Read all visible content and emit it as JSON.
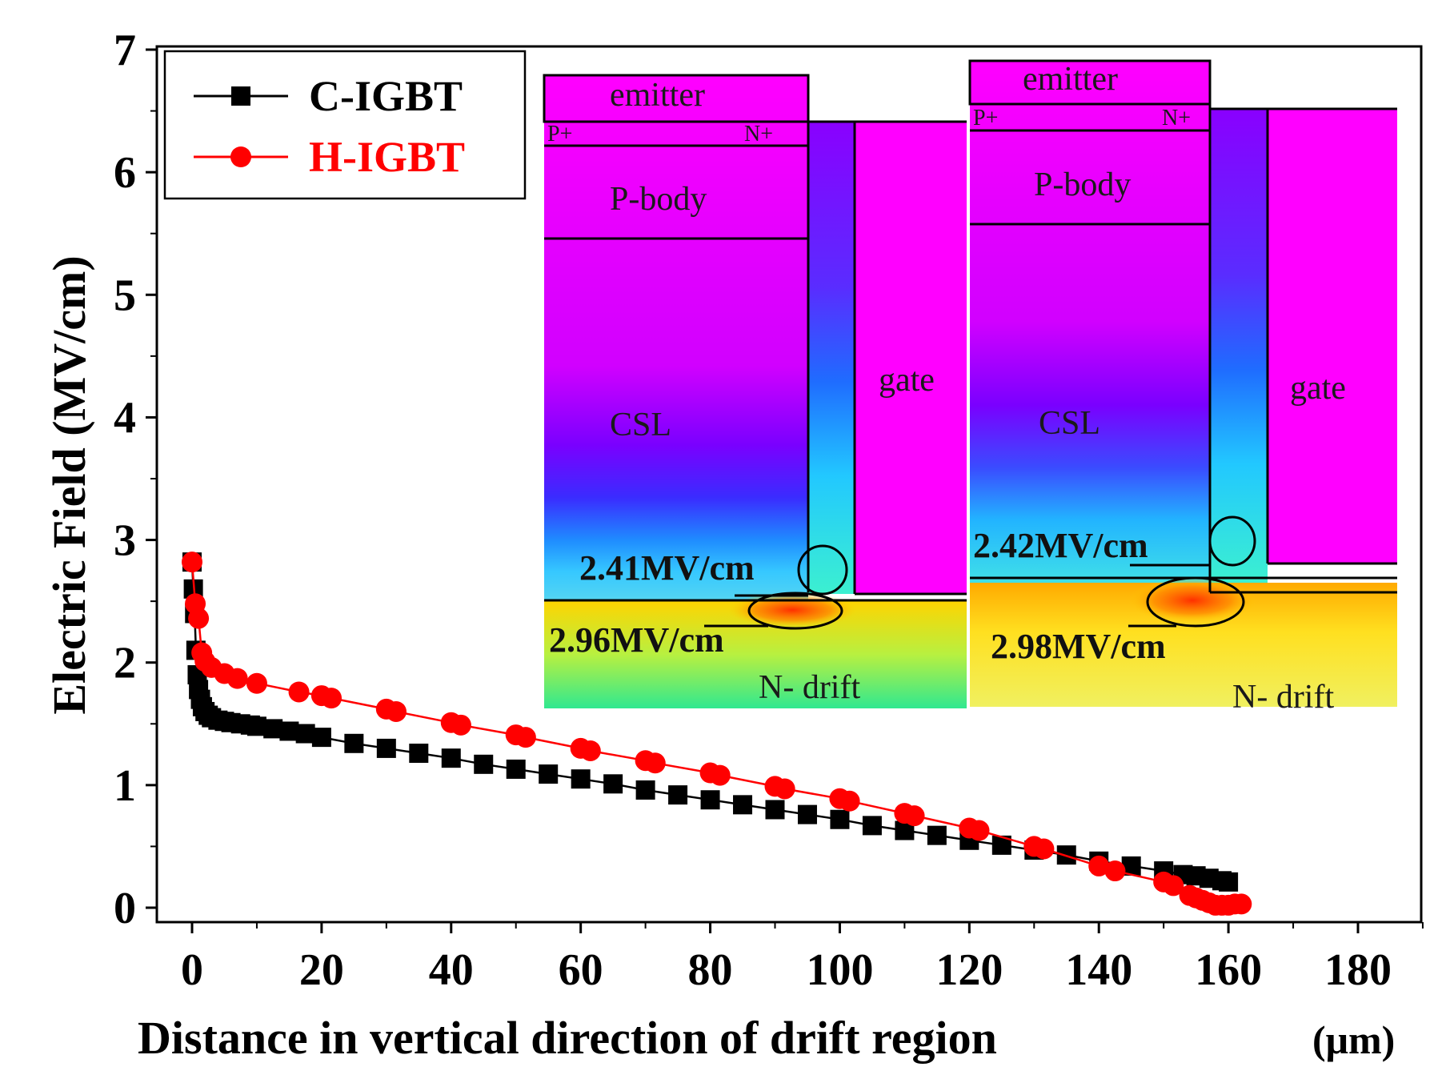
{
  "chart_data": {
    "type": "scatter",
    "xlabel": "Distance in vertical direction of drift region",
    "xlabel_unit": "(μm)",
    "ylabel": "Electric Field (MV/cm)",
    "xlim": [
      -5,
      190
    ],
    "ylim": [
      -0.2,
      7
    ],
    "x_ticks": [
      "0",
      "20",
      "40",
      "60",
      "80",
      "100",
      "120",
      "140",
      "160",
      "180"
    ],
    "y_ticks": [
      "0",
      "1",
      "2",
      "3",
      "4",
      "5",
      "6",
      "7"
    ],
    "legend_position": "top-left",
    "series": [
      {
        "name": "C-IGBT",
        "color": "#000000",
        "marker": "square",
        "x": [
          0,
          0.2,
          0.4,
          0.6,
          0.8,
          1,
          1.3,
          1.6,
          2,
          2.5,
          3,
          4,
          5,
          6,
          7.5,
          9,
          10,
          12.5,
          15,
          17.5,
          20,
          25,
          30,
          35,
          40,
          45,
          50,
          55,
          60,
          65,
          70,
          75,
          80,
          85,
          90,
          95,
          100,
          105,
          110,
          115,
          120,
          125,
          130,
          135,
          140,
          145,
          150,
          153,
          155,
          157,
          159,
          160
        ],
        "y": [
          2.82,
          2.6,
          2.4,
          2.1,
          1.9,
          1.78,
          1.7,
          1.64,
          1.6,
          1.57,
          1.55,
          1.53,
          1.52,
          1.51,
          1.5,
          1.49,
          1.48,
          1.46,
          1.44,
          1.42,
          1.39,
          1.34,
          1.3,
          1.26,
          1.22,
          1.17,
          1.13,
          1.09,
          1.05,
          1.01,
          0.96,
          0.92,
          0.88,
          0.84,
          0.8,
          0.76,
          0.72,
          0.67,
          0.63,
          0.59,
          0.55,
          0.51,
          0.47,
          0.43,
          0.38,
          0.34,
          0.3,
          0.27,
          0.26,
          0.24,
          0.22,
          0.21
        ]
      },
      {
        "name": "H-IGBT",
        "color": "#ff0000",
        "marker": "circle",
        "x": [
          0,
          0.5,
          1,
          1.5,
          2,
          3,
          5,
          7,
          10,
          16.5,
          20,
          21.5,
          30,
          31.5,
          40,
          41.5,
          50,
          51.5,
          60,
          61.5,
          70,
          71.5,
          80,
          81.5,
          90,
          91.5,
          100,
          101.5,
          110,
          111.5,
          120,
          121.5,
          130,
          131.5,
          140,
          142.5,
          150,
          151.5,
          154,
          155,
          156,
          157,
          158,
          159,
          160,
          161,
          162
        ],
        "y": [
          2.82,
          2.48,
          2.36,
          2.08,
          2.01,
          1.96,
          1.91,
          1.87,
          1.83,
          1.76,
          1.73,
          1.71,
          1.62,
          1.6,
          1.51,
          1.49,
          1.41,
          1.39,
          1.3,
          1.28,
          1.2,
          1.18,
          1.1,
          1.08,
          0.99,
          0.97,
          0.89,
          0.87,
          0.77,
          0.75,
          0.65,
          0.63,
          0.5,
          0.48,
          0.34,
          0.3,
          0.21,
          0.18,
          0.1,
          0.08,
          0.06,
          0.04,
          0.02,
          0.02,
          0.02,
          0.03,
          0.03
        ]
      }
    ]
  },
  "insets": {
    "left": {
      "emitter": "emitter",
      "p_plus": "P+",
      "n_plus": "N+",
      "p_body": "P-body",
      "csl": "CSL",
      "gate": "gate",
      "n_drift": "N- drift",
      "field_1": "2.41MV/cm",
      "field_2": "2.96MV/cm"
    },
    "right": {
      "emitter": "emitter",
      "p_plus": "P+",
      "n_plus": "N+",
      "p_body": "P-body",
      "csl": "CSL",
      "gate": "gate",
      "n_drift": "N- drift",
      "field_1": "2.42MV/cm",
      "field_2": "2.98MV/cm"
    }
  },
  "colors": {
    "c_igbt": "#000000",
    "h_igbt": "#ff0000",
    "region_magenta": "#ff00ff"
  }
}
